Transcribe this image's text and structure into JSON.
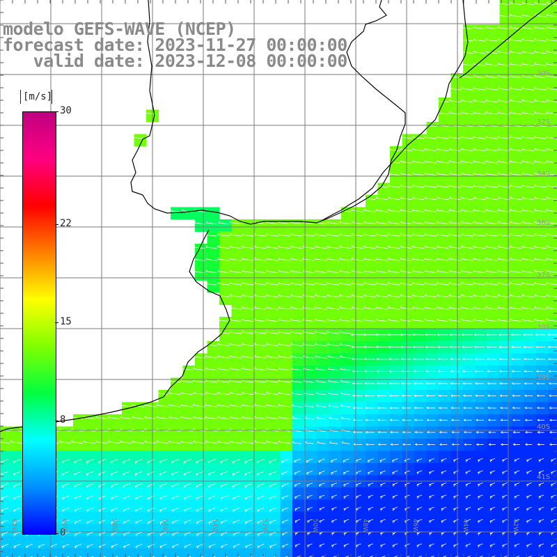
{
  "header": {
    "line1": "modelo GEFS-WAVE (NCEP)",
    "line2": "forecast date: 2023-11-27 00:00:00",
    "line3": "   valid date: 2023-12-08 00:00:00"
  },
  "colorbar": {
    "unit": "[m/s]",
    "ticks": [
      {
        "label": "30",
        "value": 30
      },
      {
        "label": "22",
        "value": 22
      },
      {
        "label": "15",
        "value": 15
      },
      {
        "label": "8",
        "value": 8
      },
      {
        "label": "0",
        "value": 0
      }
    ],
    "stops": [
      "#0000ff",
      "#0090ff",
      "#00ffff",
      "#00ff40",
      "#80ff00",
      "#ffff00",
      "#ff8000",
      "#ff0000",
      "#ff0080",
      "#c00080"
    ]
  },
  "lat_labels": [
    "30S",
    "32S",
    "34S",
    "36S",
    "37S",
    "38S",
    "39S",
    "40S",
    "41S"
  ],
  "lon_labels": [
    "62W",
    "60W",
    "58W",
    "56W",
    "54W",
    "52W",
    "50W",
    "48W",
    "46W",
    "44W",
    "42W"
  ],
  "colors": {
    "grid": "#7a7a7a",
    "coast": "#000000",
    "title": "#8a8a8a",
    "arrow": "#ffffff"
  }
}
